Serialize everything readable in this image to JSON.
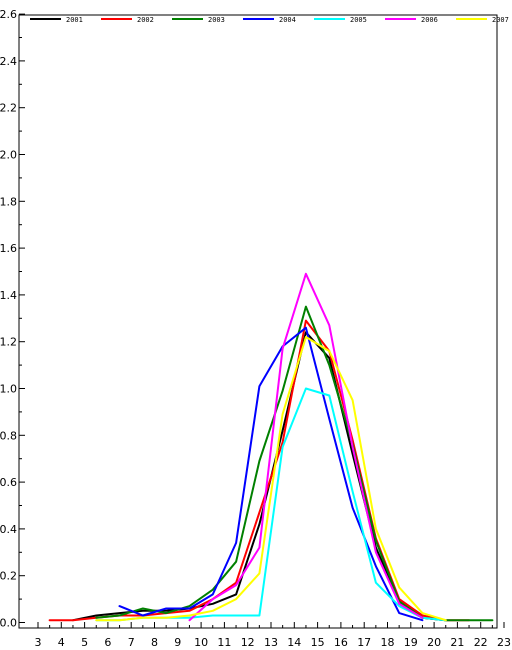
{
  "chart_data": {
    "type": "line",
    "title": "",
    "xlabel": "",
    "ylabel": "",
    "xlim": [
      3,
      23
    ],
    "ylim": [
      0.0,
      2.6
    ],
    "grid": false,
    "legend_position": "top",
    "x_ticks": [
      "3",
      "4",
      "5",
      "6",
      "7",
      "8",
      "9",
      "10",
      "11",
      "12",
      "13",
      "14",
      "15",
      "16",
      "17",
      "18",
      "19",
      "20",
      "21",
      "22",
      "23"
    ],
    "y_ticks": [
      "0.0",
      "0.2",
      "0.4",
      "0.6",
      "0.8",
      "1.0",
      "1.2",
      "1.4",
      "1.6",
      "1.8",
      "2.0",
      "2.2",
      "2.4",
      "2.6"
    ],
    "series": [
      {
        "name": "2001",
        "color": "#000000",
        "x": [
          4.5,
          5.5,
          6.5,
          7.5,
          8.5,
          9.5,
          10.5,
          11.5,
          12.5,
          13.5,
          14.5,
          15.5,
          16.5,
          17.5,
          18.5,
          19.5,
          20.5
        ],
        "y": [
          0.01,
          0.03,
          0.04,
          0.05,
          0.05,
          0.06,
          0.08,
          0.12,
          0.42,
          0.82,
          1.24,
          1.13,
          0.72,
          0.32,
          0.09,
          0.02,
          0.01
        ]
      },
      {
        "name": "2002",
        "color": "#ff0000",
        "x": [
          3.5,
          4.5,
          5.5,
          6.5,
          7.5,
          8.5,
          9.5,
          10.5,
          11.5,
          12.5,
          13.5,
          14.5,
          15.5,
          16.5,
          17.5,
          18.5,
          19.5,
          20.5,
          21.5
        ],
        "y": [
          0.01,
          0.01,
          0.02,
          0.03,
          0.03,
          0.04,
          0.05,
          0.1,
          0.17,
          0.47,
          0.77,
          1.29,
          1.16,
          0.78,
          0.36,
          0.1,
          0.03,
          0.01,
          0.01
        ]
      },
      {
        "name": "2003",
        "color": "#008000",
        "x": [
          5.5,
          6.5,
          7.5,
          8.5,
          9.5,
          10.5,
          11.5,
          12.5,
          13.5,
          14.5,
          15.5,
          16.5,
          17.5,
          18.5,
          19.5,
          20.5,
          21.5,
          22.5
        ],
        "y": [
          0.02,
          0.03,
          0.06,
          0.04,
          0.07,
          0.14,
          0.26,
          0.69,
          0.99,
          1.35,
          1.1,
          0.76,
          0.35,
          0.09,
          0.02,
          0.01,
          0.01,
          0.01
        ]
      },
      {
        "name": "2004",
        "color": "#0000ff",
        "x": [
          6.5,
          7.5,
          8.5,
          9.5,
          10.5,
          11.5,
          12.5,
          13.5,
          14.5,
          15.5,
          16.5,
          17.5,
          18.5,
          19.5
        ],
        "y": [
          0.07,
          0.03,
          0.06,
          0.06,
          0.12,
          0.34,
          1.01,
          1.18,
          1.26,
          0.87,
          0.49,
          0.24,
          0.04,
          0.01
        ]
      },
      {
        "name": "2005",
        "color": "#00ffff",
        "x": [
          5.5,
          6.5,
          7.5,
          8.5,
          9.5,
          10.5,
          11.5,
          12.5,
          13.5,
          14.5,
          15.5,
          16.5,
          17.5,
          18.5,
          19.5,
          20.5
        ],
        "y": [
          0.01,
          0.01,
          0.02,
          0.02,
          0.02,
          0.03,
          0.03,
          0.03,
          0.75,
          1.0,
          0.97,
          0.56,
          0.17,
          0.07,
          0.02,
          0.01
        ]
      },
      {
        "name": "2006",
        "color": "#ff00ff",
        "x": [
          9.5,
          10.5,
          11.5,
          12.5,
          13.5,
          14.5,
          15.5,
          16.5,
          17.5,
          18.5,
          19.5
        ],
        "y": [
          0.01,
          0.1,
          0.16,
          0.32,
          1.17,
          1.49,
          1.27,
          0.75,
          0.3,
          0.08,
          0.02
        ]
      },
      {
        "name": "2007",
        "color": "#ffff00",
        "x": [
          5.5,
          6.5,
          7.5,
          8.5,
          9.5,
          10.5,
          11.5,
          12.5,
          13.5,
          14.5,
          15.5,
          16.5,
          17.5,
          18.5,
          19.5,
          20.5
        ],
        "y": [
          0.01,
          0.01,
          0.02,
          0.02,
          0.03,
          0.05,
          0.1,
          0.21,
          0.89,
          1.22,
          1.16,
          0.95,
          0.4,
          0.15,
          0.04,
          0.01
        ]
      }
    ]
  }
}
